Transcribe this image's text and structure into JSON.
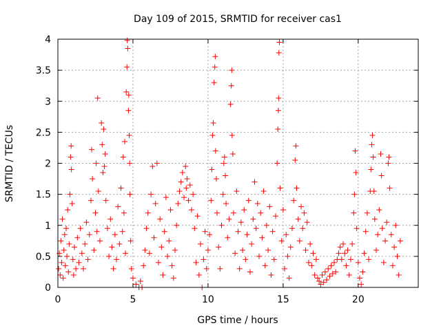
{
  "chart_data": {
    "type": "scatter",
    "title": "Day 109 of 2015, SRMTID for receiver cas1",
    "xlabel": "GPS time / hours",
    "ylabel": "SRMTID / TECUs",
    "xlim": [
      0,
      24
    ],
    "ylim": [
      0,
      4
    ],
    "x_ticks": [
      0,
      5,
      10,
      15,
      20
    ],
    "x_tick_labels": [
      "0",
      "5",
      "10",
      "15",
      "20"
    ],
    "y_ticks": [
      0,
      0.5,
      1,
      1.5,
      2,
      2.5,
      3,
      3.5,
      4
    ],
    "y_tick_labels": [
      "0",
      "0.5",
      "1",
      "1.5",
      "2",
      "2.5",
      "3",
      "3.5",
      "4"
    ],
    "grid": true,
    "marker": "+",
    "series": [
      {
        "name": "SRMTID",
        "color": "#ff0000",
        "points": [
          [
            0.05,
            0.3
          ],
          [
            0.1,
            0.55
          ],
          [
            0.15,
            0.2
          ],
          [
            0.2,
            0.75
          ],
          [
            0.25,
            0.4
          ],
          [
            0.3,
            1.1
          ],
          [
            0.35,
            0.15
          ],
          [
            0.4,
            0.6
          ],
          [
            0.45,
            0.85
          ],
          [
            0.5,
            0.35
          ],
          [
            0.55,
            0.95
          ],
          [
            0.6,
            0.5
          ],
          [
            0.65,
            1.25
          ],
          [
            0.7,
            0.25
          ],
          [
            0.75,
            0.7
          ],
          [
            0.8,
            1.5
          ],
          [
            0.85,
            2.1
          ],
          [
            0.88,
            2.28
          ],
          [
            0.9,
            1.9
          ],
          [
            0.95,
            1.35
          ],
          [
            1.0,
            0.45
          ],
          [
            1.05,
            0.2
          ],
          [
            1.1,
            0.65
          ],
          [
            1.2,
            0.3
          ],
          [
            1.3,
            0.8
          ],
          [
            1.4,
            0.4
          ],
          [
            1.5,
            0.95
          ],
          [
            1.6,
            0.55
          ],
          [
            1.7,
            0.3
          ],
          [
            1.8,
            0.7
          ],
          [
            1.9,
            1.05
          ],
          [
            2.0,
            0.45
          ],
          [
            2.1,
            0.85
          ],
          [
            2.2,
            1.4
          ],
          [
            2.25,
            2.22
          ],
          [
            2.3,
            1.75
          ],
          [
            2.4,
            0.6
          ],
          [
            2.5,
            1.2
          ],
          [
            2.55,
            2.0
          ],
          [
            2.6,
            0.9
          ],
          [
            2.65,
            3.05
          ],
          [
            2.7,
            1.55
          ],
          [
            2.8,
            0.75
          ],
          [
            2.9,
            2.65
          ],
          [
            2.95,
            2.3
          ],
          [
            3.0,
            1.85
          ],
          [
            3.05,
            2.55
          ],
          [
            3.1,
            1.95
          ],
          [
            3.15,
            2.15
          ],
          [
            3.2,
            1.4
          ],
          [
            3.3,
            0.95
          ],
          [
            3.4,
            0.5
          ],
          [
            3.5,
            1.1
          ],
          [
            3.6,
            0.65
          ],
          [
            3.7,
            0.3
          ],
          [
            3.8,
            0.85
          ],
          [
            3.9,
            0.45
          ],
          [
            4.0,
            1.3
          ],
          [
            4.1,
            0.7
          ],
          [
            4.2,
            1.6
          ],
          [
            4.3,
            0.9
          ],
          [
            4.35,
            2.1
          ],
          [
            4.4,
            1.2
          ],
          [
            4.45,
            2.35
          ],
          [
            4.5,
            0.55
          ],
          [
            4.55,
            3.15
          ],
          [
            4.6,
            3.55
          ],
          [
            4.62,
            3.98
          ],
          [
            4.65,
            3.85
          ],
          [
            4.7,
            2.85
          ],
          [
            4.72,
            3.1
          ],
          [
            4.75,
            2.45
          ],
          [
            4.78,
            2.0
          ],
          [
            4.8,
            1.5
          ],
          [
            4.85,
            0.75
          ],
          [
            4.9,
            0.3
          ],
          [
            5.0,
            0.15
          ],
          [
            5.2,
            0.05
          ],
          [
            5.4,
            0.0
          ],
          [
            5.5,
            0.1
          ],
          [
            5.6,
            0.0
          ],
          [
            5.7,
            0.35
          ],
          [
            5.8,
            0.6
          ],
          [
            5.9,
            0.95
          ],
          [
            6.0,
            1.2
          ],
          [
            6.1,
            0.55
          ],
          [
            6.2,
            1.5
          ],
          [
            6.3,
            1.95
          ],
          [
            6.4,
            0.8
          ],
          [
            6.5,
            1.35
          ],
          [
            6.6,
            2.0
          ],
          [
            6.7,
            0.4
          ],
          [
            6.8,
            1.1
          ],
          [
            6.9,
            0.65
          ],
          [
            7.0,
            0.2
          ],
          [
            7.1,
            0.9
          ],
          [
            7.2,
            1.45
          ],
          [
            7.3,
            0.5
          ],
          [
            7.4,
            0.75
          ],
          [
            7.5,
            1.25
          ],
          [
            7.6,
            0.35
          ],
          [
            7.7,
            0.15
          ],
          [
            7.8,
            0.6
          ],
          [
            7.9,
            1.0
          ],
          [
            8.0,
            1.35
          ],
          [
            8.1,
            1.55
          ],
          [
            8.2,
            1.7
          ],
          [
            8.3,
            1.85
          ],
          [
            8.4,
            1.45
          ],
          [
            8.5,
            1.95
          ],
          [
            8.55,
            1.6
          ],
          [
            8.6,
            1.75
          ],
          [
            8.7,
            1.4
          ],
          [
            8.8,
            1.65
          ],
          [
            8.9,
            1.25
          ],
          [
            9.0,
            1.5
          ],
          [
            9.1,
            0.95
          ],
          [
            9.2,
            0.4
          ],
          [
            9.3,
            1.15
          ],
          [
            9.4,
            0.2
          ],
          [
            9.5,
            0.7
          ],
          [
            9.6,
            0.0
          ],
          [
            9.7,
            0.45
          ],
          [
            9.8,
            0.9
          ],
          [
            9.9,
            0.3
          ],
          [
            10.0,
            0.6
          ],
          [
            10.1,
            0.85
          ],
          [
            10.2,
            1.4
          ],
          [
            10.25,
            1.9
          ],
          [
            10.3,
            2.45
          ],
          [
            10.35,
            2.65
          ],
          [
            10.4,
            3.3
          ],
          [
            10.45,
            3.55
          ],
          [
            10.48,
            3.72
          ],
          [
            10.5,
            2.2
          ],
          [
            10.55,
            1.75
          ],
          [
            10.6,
            1.2
          ],
          [
            10.7,
            0.65
          ],
          [
            10.8,
            0.3
          ],
          [
            10.9,
            1.0
          ],
          [
            11.0,
            1.5
          ],
          [
            11.05,
            2.0
          ],
          [
            11.1,
            2.1
          ],
          [
            11.15,
            1.8
          ],
          [
            11.2,
            1.35
          ],
          [
            11.3,
            0.8
          ],
          [
            11.4,
            1.1
          ],
          [
            11.5,
            2.95
          ],
          [
            11.55,
            3.25
          ],
          [
            11.58,
            3.5
          ],
          [
            11.6,
            2.45
          ],
          [
            11.65,
            2.15
          ],
          [
            11.7,
            1.2
          ],
          [
            11.8,
            0.55
          ],
          [
            11.9,
            1.55
          ],
          [
            12.0,
            0.9
          ],
          [
            12.1,
            0.3
          ],
          [
            12.2,
            1.05
          ],
          [
            12.3,
            0.6
          ],
          [
            12.4,
            1.25
          ],
          [
            12.5,
            0.45
          ],
          [
            12.6,
            0.85
          ],
          [
            12.7,
            1.4
          ],
          [
            12.8,
            0.25
          ],
          [
            12.9,
            0.7
          ],
          [
            13.0,
            1.1
          ],
          [
            13.1,
            1.7
          ],
          [
            13.2,
            0.95
          ],
          [
            13.3,
            1.35
          ],
          [
            13.4,
            0.5
          ],
          [
            13.5,
            1.2
          ],
          [
            13.6,
            0.8
          ],
          [
            13.7,
            1.55
          ],
          [
            13.8,
            0.35
          ],
          [
            13.9,
            1.0
          ],
          [
            14.0,
            0.6
          ],
          [
            14.1,
            1.3
          ],
          [
            14.2,
            0.2
          ],
          [
            14.3,
            0.9
          ],
          [
            14.4,
            0.45
          ],
          [
            14.5,
            1.15
          ],
          [
            14.6,
            2.0
          ],
          [
            14.65,
            2.55
          ],
          [
            14.68,
            2.85
          ],
          [
            14.7,
            3.05
          ],
          [
            14.72,
            3.78
          ],
          [
            14.75,
            3.95
          ],
          [
            14.8,
            1.6
          ],
          [
            14.9,
            0.75
          ],
          [
            15.0,
            1.25
          ],
          [
            15.1,
            0.3
          ],
          [
            15.2,
            0.85
          ],
          [
            15.3,
            0.5
          ],
          [
            15.4,
            0.15
          ],
          [
            15.5,
            0.65
          ],
          [
            15.6,
            0.95
          ],
          [
            15.7,
            1.4
          ],
          [
            15.8,
            2.05
          ],
          [
            15.85,
            2.28
          ],
          [
            15.9,
            1.6
          ],
          [
            16.0,
            1.1
          ],
          [
            16.1,
            0.75
          ],
          [
            16.2,
            1.3
          ],
          [
            16.3,
            0.95
          ],
          [
            16.4,
            1.2
          ],
          [
            16.5,
            0.6
          ],
          [
            16.6,
            1.05
          ],
          [
            16.7,
            0.4
          ],
          [
            16.8,
            0.7
          ],
          [
            16.9,
            0.35
          ],
          [
            17.0,
            0.55
          ],
          [
            17.1,
            0.2
          ],
          [
            17.2,
            0.45
          ],
          [
            17.3,
            0.15
          ],
          [
            17.4,
            0.1
          ],
          [
            17.5,
            0.05
          ],
          [
            17.6,
            0.2
          ],
          [
            17.7,
            0.08
          ],
          [
            17.8,
            0.25
          ],
          [
            17.9,
            0.12
          ],
          [
            18.0,
            0.3
          ],
          [
            18.1,
            0.18
          ],
          [
            18.2,
            0.35
          ],
          [
            18.3,
            0.22
          ],
          [
            18.4,
            0.4
          ],
          [
            18.5,
            0.25
          ],
          [
            18.6,
            0.45
          ],
          [
            18.7,
            0.55
          ],
          [
            18.8,
            0.65
          ],
          [
            18.9,
            0.45
          ],
          [
            19.0,
            0.7
          ],
          [
            19.1,
            0.55
          ],
          [
            19.2,
            0.35
          ],
          [
            19.3,
            0.6
          ],
          [
            19.4,
            0.2
          ],
          [
            19.5,
            0.45
          ],
          [
            19.6,
            0.7
          ],
          [
            19.7,
            1.2
          ],
          [
            19.75,
            1.5
          ],
          [
            19.8,
            2.2
          ],
          [
            19.85,
            1.85
          ],
          [
            19.9,
            0.95
          ],
          [
            20.0,
            0.4
          ],
          [
            20.1,
            0.15
          ],
          [
            20.2,
            0.05
          ],
          [
            20.3,
            0.25
          ],
          [
            20.4,
            0.55
          ],
          [
            20.5,
            0.9
          ],
          [
            20.6,
            1.2
          ],
          [
            20.7,
            0.45
          ],
          [
            20.8,
            1.55
          ],
          [
            20.85,
            1.9
          ],
          [
            20.9,
            2.3
          ],
          [
            20.95,
            2.45
          ],
          [
            21.0,
            2.1
          ],
          [
            21.05,
            1.55
          ],
          [
            21.1,
            1.1
          ],
          [
            21.2,
            0.6
          ],
          [
            21.3,
            0.85
          ],
          [
            21.4,
            1.25
          ],
          [
            21.5,
            2.15
          ],
          [
            21.55,
            1.8
          ],
          [
            21.6,
            0.95
          ],
          [
            21.7,
            0.4
          ],
          [
            21.8,
            0.75
          ],
          [
            21.9,
            1.05
          ],
          [
            22.0,
            2.0
          ],
          [
            22.05,
            2.1
          ],
          [
            22.1,
            1.6
          ],
          [
            22.2,
            0.85
          ],
          [
            22.3,
            0.35
          ],
          [
            22.4,
            0.65
          ],
          [
            22.5,
            1.0
          ],
          [
            22.6,
            0.5
          ],
          [
            22.7,
            0.2
          ],
          [
            22.8,
            0.75
          ]
        ]
      }
    ]
  }
}
